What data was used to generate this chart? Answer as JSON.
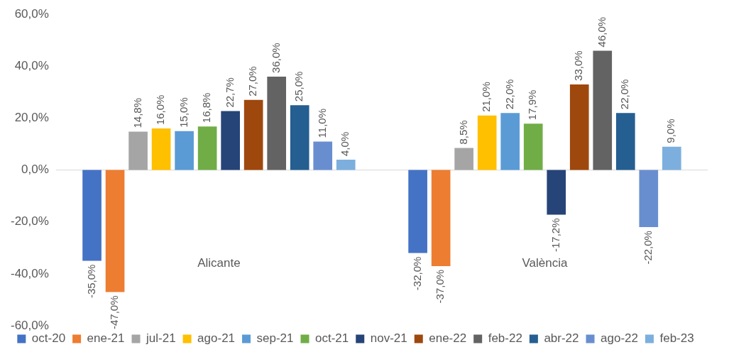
{
  "chart_data": {
    "type": "bar",
    "categories": [
      "Alicante",
      "València"
    ],
    "series": [
      {
        "name": "oct-20",
        "color": "#4472c4",
        "values": [
          -35,
          -32
        ],
        "value_labels": [
          "-35,0%",
          "-32,0%"
        ]
      },
      {
        "name": "ene-21",
        "color": "#ed7d31",
        "values": [
          -47,
          -37
        ],
        "value_labels": [
          "-47,0%",
          "-37,0%"
        ]
      },
      {
        "name": "jul-21",
        "color": "#a5a5a5",
        "values": [
          14.8,
          8.5
        ],
        "value_labels": [
          "14,8%",
          "8,5%"
        ]
      },
      {
        "name": "ago-21",
        "color": "#ffc000",
        "values": [
          16,
          21
        ],
        "value_labels": [
          "16,0%",
          "21,0%"
        ]
      },
      {
        "name": "sep-21",
        "color": "#5b9bd5",
        "values": [
          15,
          22
        ],
        "value_labels": [
          "15,0%",
          "22,0%"
        ]
      },
      {
        "name": "oct-21",
        "color": "#70ad47",
        "values": [
          16.8,
          17.9
        ],
        "value_labels": [
          "16,8%",
          "17,9%"
        ]
      },
      {
        "name": "nov-21",
        "color": "#264478",
        "values": [
          22.7,
          -17.2
        ],
        "value_labels": [
          "22,7%",
          "-17,2%"
        ]
      },
      {
        "name": "ene-22",
        "color": "#9e480e",
        "values": [
          27,
          33
        ],
        "value_labels": [
          "27,0%",
          "33,0%"
        ]
      },
      {
        "name": "feb-22",
        "color": "#636363",
        "values": [
          36,
          46
        ],
        "value_labels": [
          "36,0%",
          "46,0%"
        ]
      },
      {
        "name": "abr-22",
        "color": "#255e91",
        "values": [
          25,
          22
        ],
        "value_labels": [
          "25,0%",
          "22,0%"
        ]
      },
      {
        "name": "ago-22",
        "color": "#698ed0",
        "values": [
          11,
          -22
        ],
        "value_labels": [
          "11,0%",
          "-22,0%"
        ]
      },
      {
        "name": "feb-23",
        "color": "#7cafdd",
        "values": [
          4,
          9
        ],
        "value_labels": [
          "4,0%",
          "9,0%"
        ]
      }
    ],
    "ylim": [
      -60,
      60
    ],
    "yticks": [
      {
        "value": -60,
        "label": "-60,0%"
      },
      {
        "value": -40,
        "label": "-40,0%"
      },
      {
        "value": -20,
        "label": "-20,0%"
      },
      {
        "value": 0,
        "label": "0,0%"
      },
      {
        "value": 20,
        "label": "20,0%"
      },
      {
        "value": 40,
        "label": "40,0%"
      },
      {
        "value": 60,
        "label": "60,0%"
      }
    ],
    "grid": false,
    "legend": "bottom",
    "ref_lines": [
      {
        "axis": "y",
        "value": 0,
        "color": "#d9d9d9"
      }
    ]
  }
}
